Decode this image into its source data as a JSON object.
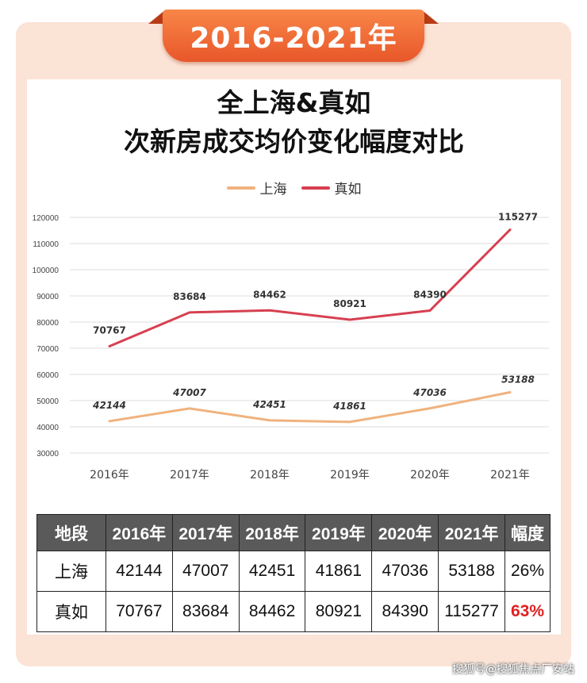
{
  "banner": "2016-2021年",
  "title_line1": "全上海&真如",
  "title_line2": "次新房成交均价变化幅度对比",
  "chart_data": {
    "type": "line",
    "categories": [
      "2016年",
      "2017年",
      "2018年",
      "2019年",
      "2020年",
      "2021年"
    ],
    "series": [
      {
        "name": "上海",
        "color": "#f0b27e",
        "values": [
          42144,
          47007,
          42451,
          41861,
          47036,
          53188
        ]
      },
      {
        "name": "真如",
        "color": "#d64050",
        "values": [
          70767,
          83684,
          84462,
          80921,
          84390,
          115277
        ]
      }
    ],
    "yticks": [
      30000,
      40000,
      50000,
      60000,
      70000,
      80000,
      90000,
      100000,
      110000,
      120000
    ],
    "ylim": [
      30000,
      120000
    ],
    "grid": true,
    "legend_position": "top-center"
  },
  "table": {
    "headers": [
      "地段",
      "2016年",
      "2017年",
      "2018年",
      "2019年",
      "2020年",
      "2021年",
      "幅度"
    ],
    "rows": [
      [
        "上海",
        "42144",
        "47007",
        "42451",
        "41861",
        "47036",
        "53188",
        "26%"
      ],
      [
        "真如",
        "70767",
        "83684",
        "84462",
        "80921",
        "84390",
        "115277",
        "63%"
      ]
    ]
  },
  "watermark": "搜狐号@搜狐焦点厂安站"
}
